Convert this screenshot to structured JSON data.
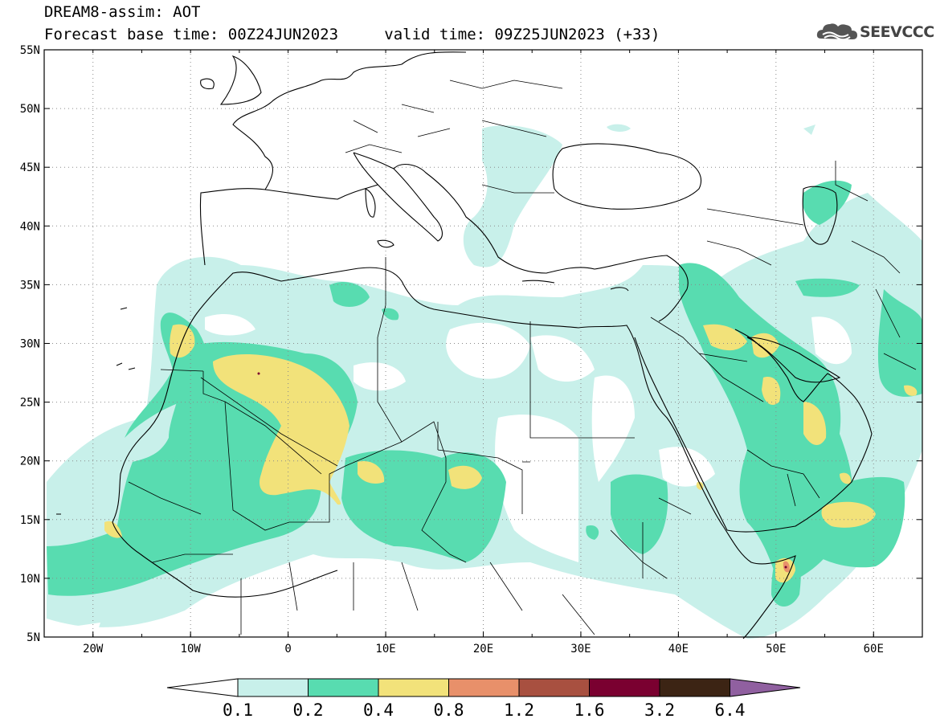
{
  "header": {
    "product": "DREAM8-assim: AOT",
    "base_label": "Forecast base time: 00Z24JUN2023",
    "valid_label": "valid time: 09Z25JUN2023 (+33)"
  },
  "logo": {
    "text": "SEEVCCC",
    "icon": "cloud-icon"
  },
  "map": {
    "lon_labels": [
      "20W",
      "10W",
      "0",
      "10E",
      "20E",
      "30E",
      "40E",
      "50E",
      "60E"
    ],
    "lat_labels": [
      "55N",
      "50N",
      "45N",
      "40N",
      "35N",
      "30N",
      "25N",
      "20N",
      "15N",
      "10N",
      "5N"
    ],
    "lon_range": [
      -25,
      65
    ],
    "lat_range": [
      5,
      55
    ],
    "grid": "dotted",
    "variable": "AOT"
  },
  "colorbar": {
    "tick_labels": [
      "0.1",
      "0.2",
      "0.4",
      "0.8",
      "1.2",
      "1.6",
      "3.2",
      "6.4"
    ],
    "colors": [
      "#ffffff",
      "#c8f0ea",
      "#58dcb0",
      "#f2e27a",
      "#e8906a",
      "#a85040",
      "#7a0030",
      "#3c2414",
      "#9060a0"
    ]
  }
}
